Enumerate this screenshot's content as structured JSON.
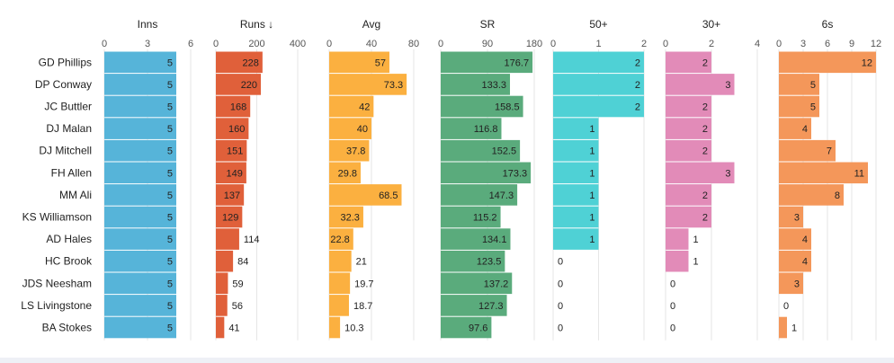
{
  "chart_data": {
    "type": "bar",
    "orientation": "horizontal",
    "players": [
      "GD Phillips",
      "DP Conway",
      "JC Buttler",
      "DJ Malan",
      "DJ Mitchell",
      "FH Allen",
      "MM Ali",
      "KS Williamson",
      "AD Hales",
      "HC Brook",
      "JDS Neesham",
      "LS Livingstone",
      "BA Stokes"
    ],
    "series": [
      {
        "key": "inns",
        "name": "Inns",
        "color": "#56b4d9",
        "ticks": [
          "0",
          "3",
          "6"
        ],
        "xlim": [
          0,
          6
        ],
        "values": [
          5,
          5,
          5,
          5,
          5,
          5,
          5,
          5,
          5,
          5,
          5,
          5,
          5
        ],
        "labels": [
          "5",
          "5",
          "5",
          "5",
          "5",
          "5",
          "5",
          "5",
          "5",
          "5",
          "5",
          "5",
          "5"
        ]
      },
      {
        "key": "runs",
        "name": "Runs ↓",
        "color": "#e0603a",
        "ticks": [
          "0",
          "200",
          "400"
        ],
        "xlim": [
          0,
          400
        ],
        "values": [
          228,
          220,
          168,
          160,
          151,
          149,
          137,
          129,
          114,
          84,
          59,
          56,
          41
        ],
        "labels": [
          "228",
          "220",
          "168",
          "160",
          "151",
          "149",
          "137",
          "129",
          "114",
          "84",
          "59",
          "56",
          "41"
        ]
      },
      {
        "key": "avg",
        "name": "Avg",
        "color": "#fbb040",
        "ticks": [
          "0",
          "40",
          "80"
        ],
        "xlim": [
          0,
          80
        ],
        "values": [
          57,
          73.3,
          42,
          40,
          37.8,
          29.8,
          68.5,
          32.3,
          22.8,
          21,
          19.7,
          18.7,
          10.3
        ],
        "labels": [
          "57",
          "73.3",
          "42",
          "40",
          "37.8",
          "29.8",
          "68.5",
          "32.3",
          "22.8",
          "21",
          "19.7",
          "18.7",
          "10.3"
        ]
      },
      {
        "key": "sr",
        "name": "SR",
        "color": "#5aab7c",
        "ticks": [
          "0",
          "90",
          "180"
        ],
        "xlim": [
          0,
          180
        ],
        "values": [
          176.7,
          133.3,
          158.5,
          116.8,
          152.5,
          173.3,
          147.3,
          115.2,
          134.1,
          123.5,
          137.2,
          127.3,
          97.6
        ],
        "labels": [
          "176.7",
          "133.3",
          "158.5",
          "116.8",
          "152.5",
          "173.3",
          "147.3",
          "115.2",
          "134.1",
          "123.5",
          "137.2",
          "127.3",
          "97.6"
        ]
      },
      {
        "key": "fifties",
        "name": "50+",
        "color": "#4fd1d5",
        "ticks": [
          "0",
          "1",
          "2"
        ],
        "xlim": [
          0,
          2
        ],
        "values": [
          2,
          2,
          2,
          1,
          1,
          1,
          1,
          1,
          1,
          0,
          0,
          0,
          0
        ],
        "labels": [
          "2",
          "2",
          "2",
          "1",
          "1",
          "1",
          "1",
          "1",
          "1",
          "0",
          "0",
          "0",
          "0"
        ]
      },
      {
        "key": "thirties",
        "name": "30+",
        "color": "#e28bb8",
        "ticks": [
          "0",
          "2",
          "4"
        ],
        "xlim": [
          0,
          4
        ],
        "values": [
          2,
          3,
          2,
          2,
          2,
          3,
          2,
          2,
          1,
          1,
          0,
          0,
          0
        ],
        "labels": [
          "2",
          "3",
          "2",
          "2",
          "2",
          "3",
          "2",
          "2",
          "1",
          "1",
          "0",
          "0",
          "0"
        ]
      },
      {
        "key": "sixes",
        "name": "6s",
        "color": "#f4975a",
        "ticks": [
          "0",
          "3",
          "6",
          "9",
          "12"
        ],
        "xlim": [
          0,
          12
        ],
        "values": [
          12,
          5,
          5,
          4,
          7,
          11,
          8,
          3,
          4,
          4,
          3,
          0,
          1
        ],
        "labels": [
          "12",
          "5",
          "5",
          "4",
          "7",
          "11",
          "8",
          "3",
          "4",
          "4",
          "3",
          "0",
          "1"
        ]
      }
    ],
    "grid": true,
    "legend": "none"
  }
}
